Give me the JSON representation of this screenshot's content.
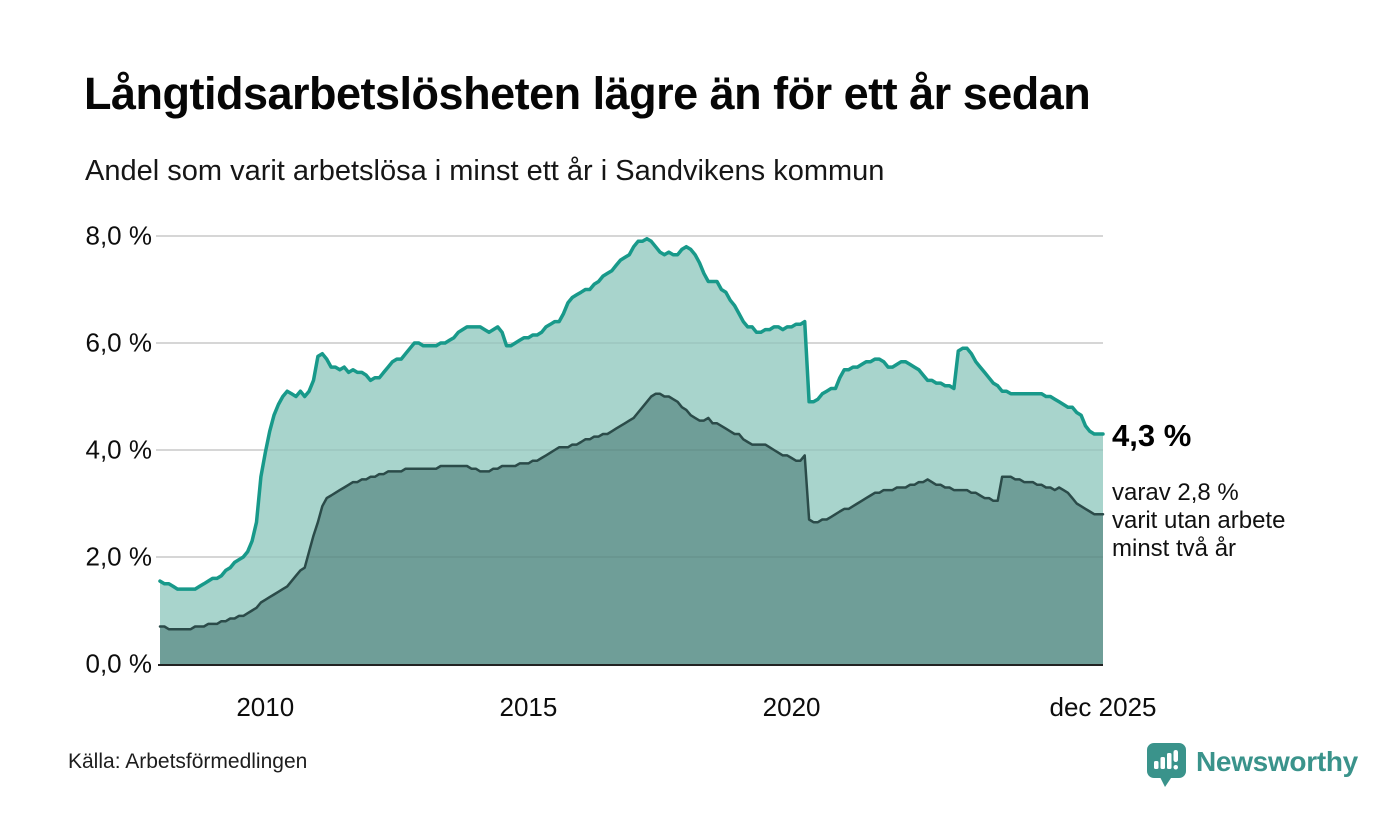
{
  "header": {
    "title": "Långtidsarbetslösheten lägre än för ett år sedan",
    "subtitle": "Andel som varit arbetslösa i minst ett år i Sandvikens kommun"
  },
  "annotations": {
    "latest_total": "4,3 %",
    "note_lines": [
      "varav 2,8 %",
      "varit utan arbete",
      "minst två år"
    ]
  },
  "footer": {
    "source": "Källa: Arbetsförmedlingen",
    "brand_name": "Newsworthy",
    "brand_color": "#3a938b"
  },
  "chart_data": {
    "type": "area",
    "x_start": "2008-01",
    "x_end": "2025-12",
    "x_frequency": "monthly",
    "grid": true,
    "ylim": [
      0,
      8.4
    ],
    "y_ticks": [
      0,
      2,
      4,
      6,
      8
    ],
    "y_tick_labels": [
      "0,0 %",
      "2,0 %",
      "4,0 %",
      "6,0 %",
      "8,0 %"
    ],
    "x_tick_labels": [
      "2010",
      "2015",
      "2020",
      "dec 2025"
    ],
    "x_tick_month_index": [
      24,
      84,
      144,
      215
    ],
    "colors": {
      "grid": "#d8d8d8",
      "axis": "#222222"
    },
    "series": [
      {
        "name": "arbetslösa minst ett år",
        "line_color": "#18998a",
        "fill_color": "#a8d4cc",
        "line_width": 3.5,
        "latest_value": 4.3,
        "values": [
          1.55,
          1.5,
          1.5,
          1.45,
          1.4,
          1.4,
          1.4,
          1.4,
          1.4,
          1.45,
          1.5,
          1.55,
          1.6,
          1.6,
          1.65,
          1.75,
          1.8,
          1.9,
          1.95,
          2.0,
          2.1,
          2.3,
          2.65,
          3.5,
          3.95,
          4.35,
          4.65,
          4.85,
          5.0,
          5.1,
          5.05,
          5.0,
          5.1,
          5.0,
          5.1,
          5.3,
          5.75,
          5.8,
          5.7,
          5.55,
          5.55,
          5.5,
          5.55,
          5.45,
          5.5,
          5.45,
          5.45,
          5.4,
          5.3,
          5.35,
          5.35,
          5.45,
          5.55,
          5.65,
          5.7,
          5.7,
          5.8,
          5.9,
          6.0,
          6.0,
          5.95,
          5.95,
          5.95,
          5.95,
          6.0,
          6.0,
          6.05,
          6.1,
          6.2,
          6.25,
          6.3,
          6.3,
          6.3,
          6.3,
          6.25,
          6.2,
          6.25,
          6.3,
          6.2,
          5.95,
          5.95,
          6.0,
          6.05,
          6.1,
          6.1,
          6.15,
          6.15,
          6.2,
          6.3,
          6.35,
          6.4,
          6.4,
          6.55,
          6.75,
          6.85,
          6.9,
          6.95,
          7.0,
          7.0,
          7.1,
          7.15,
          7.25,
          7.3,
          7.35,
          7.45,
          7.55,
          7.6,
          7.65,
          7.8,
          7.9,
          7.9,
          7.95,
          7.9,
          7.8,
          7.7,
          7.65,
          7.7,
          7.65,
          7.65,
          7.75,
          7.8,
          7.75,
          7.65,
          7.5,
          7.3,
          7.15,
          7.15,
          7.15,
          7.0,
          6.95,
          6.8,
          6.7,
          6.55,
          6.4,
          6.3,
          6.3,
          6.2,
          6.2,
          6.25,
          6.25,
          6.3,
          6.3,
          6.25,
          6.3,
          6.3,
          6.35,
          6.35,
          6.4,
          4.9,
          4.9,
          4.95,
          5.05,
          5.1,
          5.15,
          5.15,
          5.35,
          5.5,
          5.5,
          5.55,
          5.55,
          5.6,
          5.65,
          5.65,
          5.7,
          5.7,
          5.65,
          5.55,
          5.55,
          5.6,
          5.65,
          5.65,
          5.6,
          5.55,
          5.5,
          5.4,
          5.3,
          5.3,
          5.25,
          5.25,
          5.2,
          5.2,
          5.15,
          5.85,
          5.9,
          5.9,
          5.8,
          5.65,
          5.55,
          5.45,
          5.35,
          5.25,
          5.2,
          5.1,
          5.1,
          5.05,
          5.05,
          5.05,
          5.05,
          5.05,
          5.05,
          5.05,
          5.05,
          5.0,
          5.0,
          4.95,
          4.9,
          4.85,
          4.8,
          4.8,
          4.7,
          4.65,
          4.45,
          4.35,
          4.3,
          4.3,
          4.3
        ]
      },
      {
        "name": "utan arbete minst två år",
        "line_color": "#2b4b49",
        "fill_color": "#6f9e98",
        "line_width": 2.5,
        "latest_value": 2.8,
        "values": [
          0.7,
          0.7,
          0.65,
          0.65,
          0.65,
          0.65,
          0.65,
          0.65,
          0.7,
          0.7,
          0.7,
          0.75,
          0.75,
          0.75,
          0.8,
          0.8,
          0.85,
          0.85,
          0.9,
          0.9,
          0.95,
          1.0,
          1.05,
          1.15,
          1.2,
          1.25,
          1.3,
          1.35,
          1.4,
          1.45,
          1.55,
          1.65,
          1.75,
          1.8,
          2.1,
          2.4,
          2.65,
          2.95,
          3.1,
          3.15,
          3.2,
          3.25,
          3.3,
          3.35,
          3.4,
          3.4,
          3.45,
          3.45,
          3.5,
          3.5,
          3.55,
          3.55,
          3.6,
          3.6,
          3.6,
          3.6,
          3.65,
          3.65,
          3.65,
          3.65,
          3.65,
          3.65,
          3.65,
          3.65,
          3.7,
          3.7,
          3.7,
          3.7,
          3.7,
          3.7,
          3.7,
          3.65,
          3.65,
          3.6,
          3.6,
          3.6,
          3.65,
          3.65,
          3.7,
          3.7,
          3.7,
          3.7,
          3.75,
          3.75,
          3.75,
          3.8,
          3.8,
          3.85,
          3.9,
          3.95,
          4.0,
          4.05,
          4.05,
          4.05,
          4.1,
          4.1,
          4.15,
          4.2,
          4.2,
          4.25,
          4.25,
          4.3,
          4.3,
          4.35,
          4.4,
          4.45,
          4.5,
          4.55,
          4.6,
          4.7,
          4.8,
          4.9,
          5.0,
          5.05,
          5.05,
          5.0,
          5.0,
          4.95,
          4.9,
          4.8,
          4.75,
          4.65,
          4.6,
          4.55,
          4.55,
          4.6,
          4.5,
          4.5,
          4.45,
          4.4,
          4.35,
          4.3,
          4.3,
          4.2,
          4.15,
          4.1,
          4.1,
          4.1,
          4.1,
          4.05,
          4.0,
          3.95,
          3.9,
          3.9,
          3.85,
          3.8,
          3.8,
          3.9,
          2.7,
          2.65,
          2.65,
          2.7,
          2.7,
          2.75,
          2.8,
          2.85,
          2.9,
          2.9,
          2.95,
          3.0,
          3.05,
          3.1,
          3.15,
          3.2,
          3.2,
          3.25,
          3.25,
          3.25,
          3.3,
          3.3,
          3.3,
          3.35,
          3.35,
          3.4,
          3.4,
          3.45,
          3.4,
          3.35,
          3.35,
          3.3,
          3.3,
          3.25,
          3.25,
          3.25,
          3.25,
          3.2,
          3.2,
          3.15,
          3.1,
          3.1,
          3.05,
          3.05,
          3.5,
          3.5,
          3.5,
          3.45,
          3.45,
          3.4,
          3.4,
          3.4,
          3.35,
          3.35,
          3.3,
          3.3,
          3.25,
          3.3,
          3.25,
          3.2,
          3.1,
          3.0,
          2.95,
          2.9,
          2.85,
          2.8,
          2.8,
          2.8
        ]
      }
    ]
  }
}
